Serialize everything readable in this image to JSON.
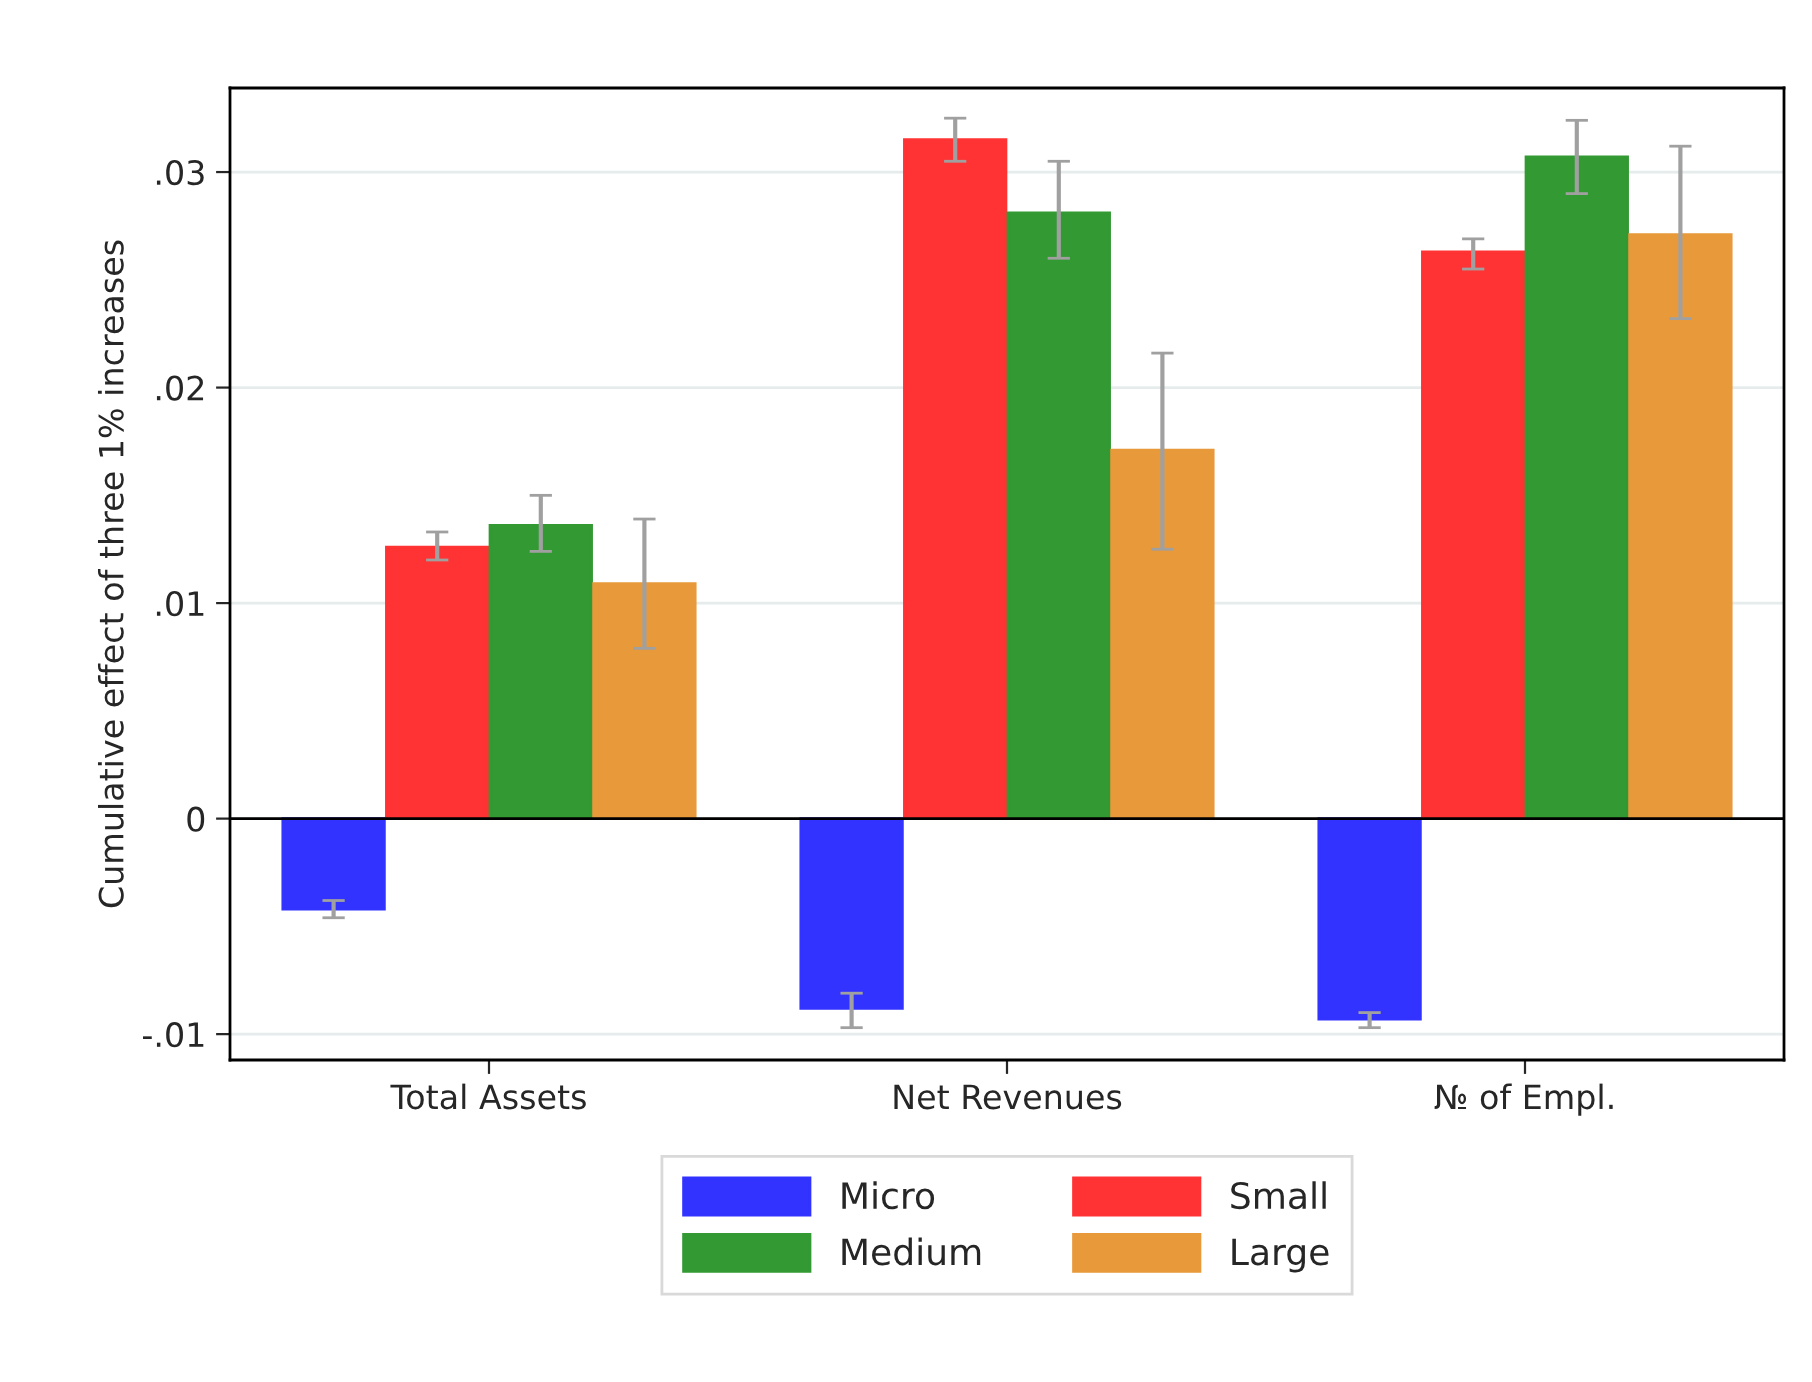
{
  "chart_data": {
    "type": "bar",
    "ylabel": "Cumulative effect of three 1% increases",
    "categories": [
      "Total Assets",
      "Net Revenues",
      "№ of Empl."
    ],
    "series": [
      {
        "name": "Micro",
        "color": "#3333ff",
        "values": [
          -0.0042,
          -0.0088,
          -0.0093
        ],
        "errors": [
          [
            -0.0046,
            -0.0038
          ],
          [
            -0.0097,
            -0.0081
          ],
          [
            -0.0097,
            -0.009
          ]
        ]
      },
      {
        "name": "Small",
        "color": "#ff3333",
        "values": [
          0.0126,
          0.0315,
          0.0263
        ],
        "errors": [
          [
            0.012,
            0.0133
          ],
          [
            0.0305,
            0.0325
          ],
          [
            0.0255,
            0.0269
          ]
        ]
      },
      {
        "name": "Medium",
        "color": "#339933",
        "values": [
          0.0136,
          0.0281,
          0.0307
        ],
        "errors": [
          [
            0.0124,
            0.015
          ],
          [
            0.026,
            0.0305
          ],
          [
            0.029,
            0.0324
          ]
        ]
      },
      {
        "name": "Large",
        "color": "#e8993a",
        "values": [
          0.0109,
          0.0171,
          0.0271
        ],
        "errors": [
          [
            0.0079,
            0.0139
          ],
          [
            0.0125,
            0.0216
          ],
          [
            0.0232,
            0.0312
          ]
        ]
      }
    ],
    "ylim": [
      -0.0112,
      0.0339
    ],
    "yticks": [
      {
        "value": -0.01,
        "label": "-.01"
      },
      {
        "value": 0,
        "label": "0"
      },
      {
        "value": 0.01,
        "label": ".01"
      },
      {
        "value": 0.02,
        "label": ".02"
      },
      {
        "value": 0.03,
        "label": ".03"
      }
    ],
    "grid": "y",
    "legend": "bottom"
  }
}
